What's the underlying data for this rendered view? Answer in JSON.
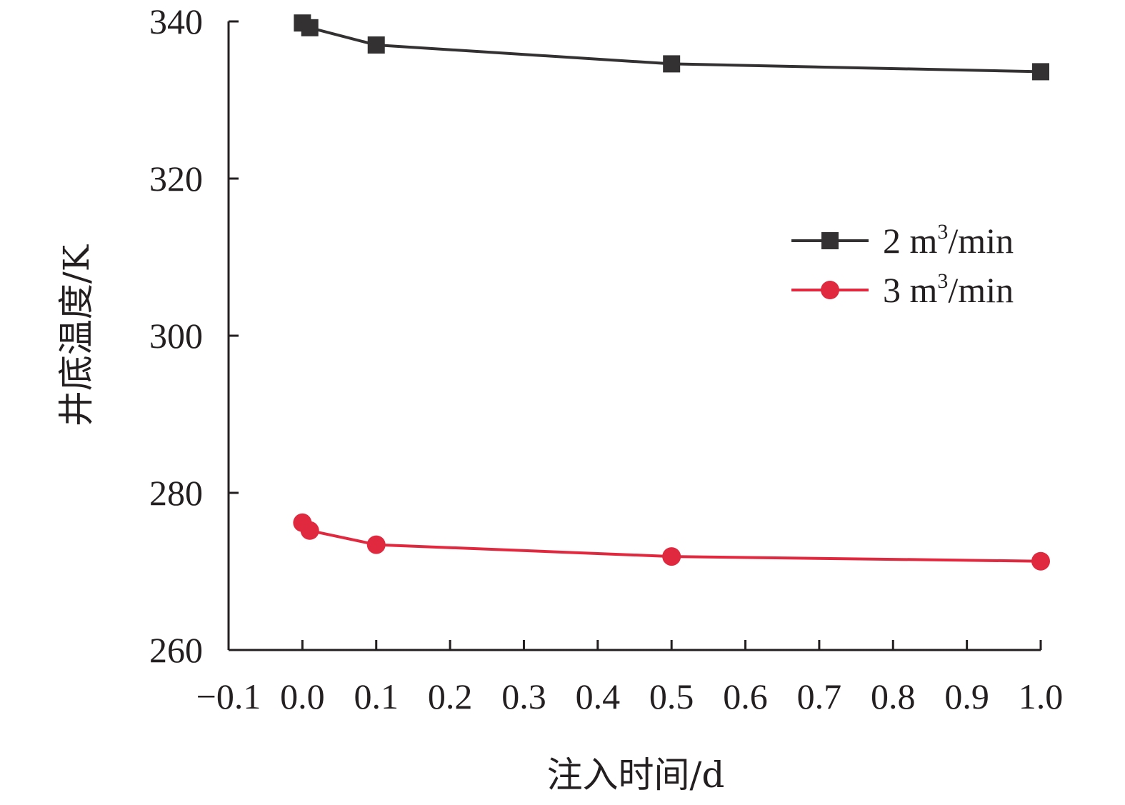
{
  "chart_data": {
    "type": "line",
    "xlabel": "注入时间/d",
    "ylabel": "井底温度/K",
    "xlim": [
      -0.1,
      1.0
    ],
    "ylim": [
      260,
      340
    ],
    "xticks": [
      "−0.1",
      "0.0",
      "0.1",
      "0.2",
      "0.3",
      "0.4",
      "0.5",
      "0.6",
      "0.7",
      "0.8",
      "0.9",
      "1.0"
    ],
    "xtick_values": [
      -0.1,
      0.0,
      0.1,
      0.2,
      0.3,
      0.4,
      0.5,
      0.6,
      0.7,
      0.8,
      0.9,
      1.0
    ],
    "yticks": [
      "260",
      "280",
      "300",
      "320",
      "340"
    ],
    "ytick_values": [
      260,
      280,
      300,
      320,
      340
    ],
    "grid": false,
    "legend_position": "right",
    "series": [
      {
        "name": "2 m³/min",
        "name_base": "2 m",
        "name_sup": "3",
        "name_tail": "/min",
        "color": "#333132",
        "marker": "square",
        "x": [
          0.0,
          0.01,
          0.1,
          0.5,
          1.0
        ],
        "y": [
          339.8,
          339.2,
          337.0,
          334.6,
          333.6
        ]
      },
      {
        "name": "3 m³/min",
        "name_base": "3 m",
        "name_sup": "3",
        "name_tail": "/min",
        "color": "#e0283e",
        "marker": "circle",
        "x": [
          0.0,
          0.01,
          0.1,
          0.5,
          1.0
        ],
        "y": [
          276.2,
          275.2,
          273.4,
          271.9,
          271.3
        ]
      }
    ]
  }
}
